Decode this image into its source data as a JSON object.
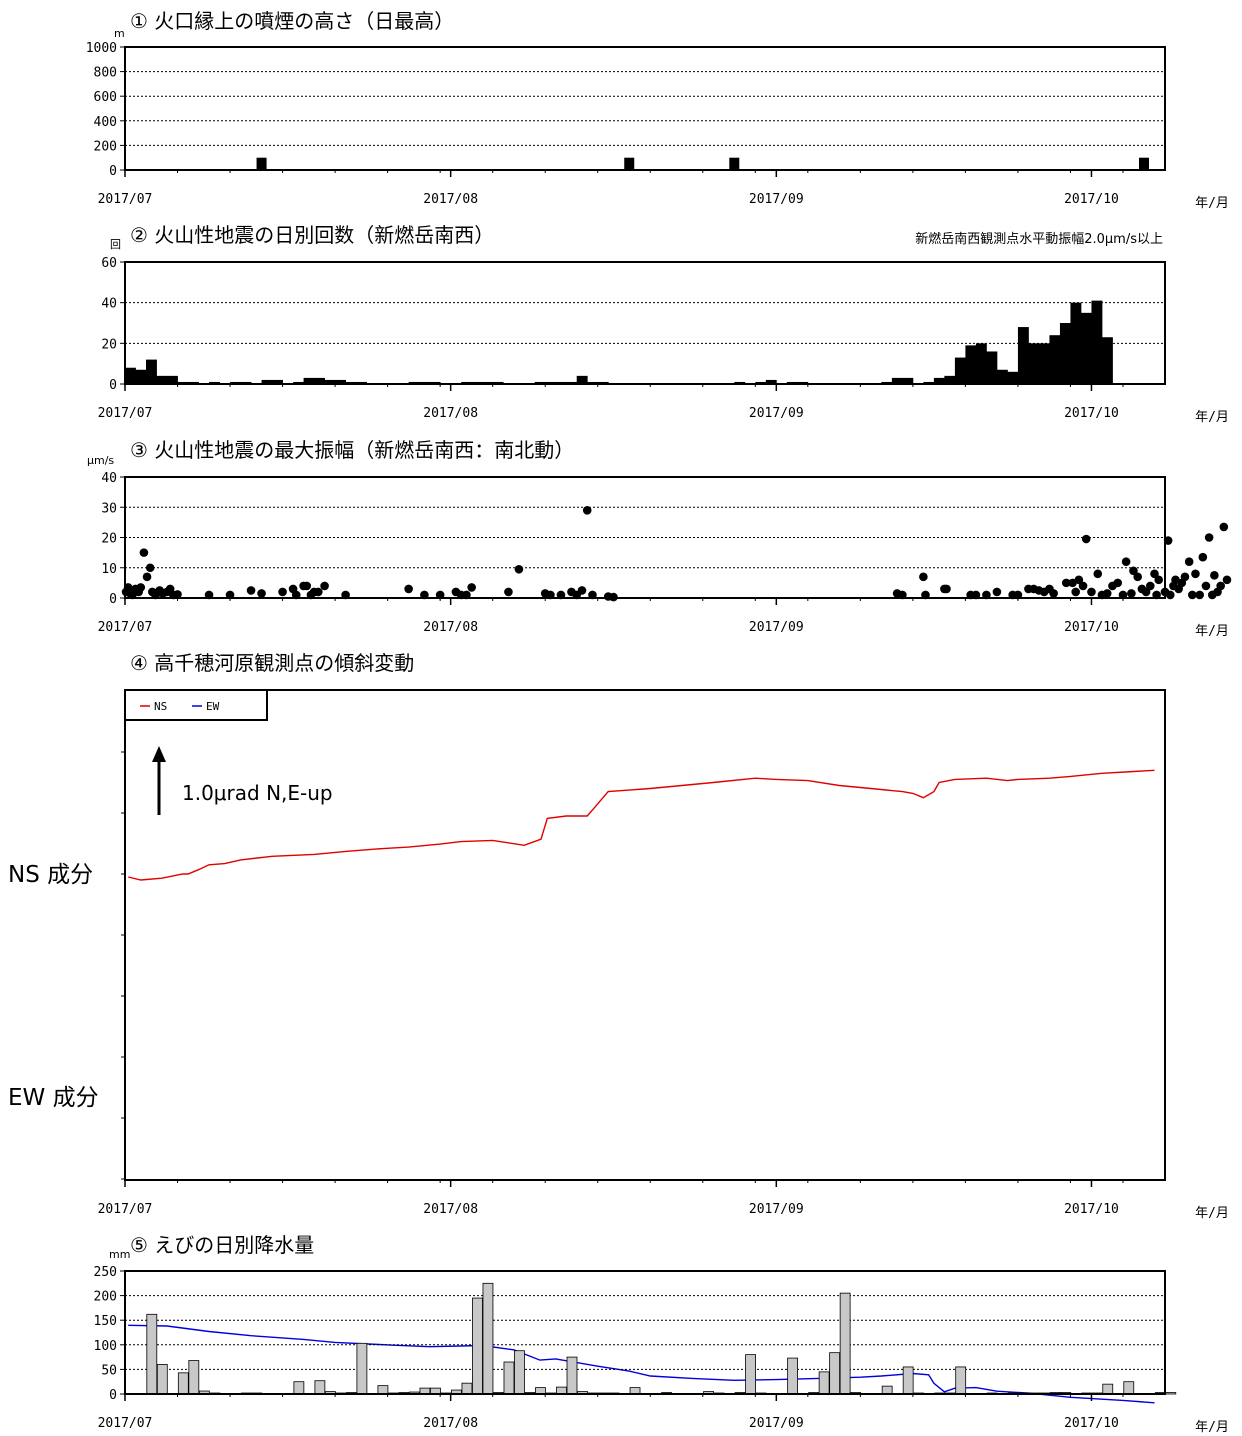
{
  "x_axis": {
    "ticks": [
      "2017/07",
      "2017/08",
      "2017/09",
      "2017/10"
    ],
    "unit_label": "年/月",
    "range": [
      "2017-07-01",
      "2017-10-08"
    ]
  },
  "chart_data": [
    {
      "id": "p1",
      "type": "bar",
      "title": "① 火口縁上の噴煙の高さ（日最高）",
      "ylabel": "m",
      "ylim": [
        0,
        1000
      ],
      "yticks": [
        0,
        200,
        400,
        600,
        800,
        1000
      ],
      "grid": true,
      "x": [
        "2017-07-14",
        "2017-08-18",
        "2017-08-28",
        "2017-10-06"
      ],
      "values": [
        100,
        100,
        100,
        100
      ]
    },
    {
      "id": "p2",
      "type": "bar",
      "title": "② 火山性地震の日別回数（新燃岳南西）",
      "ylabel": "回",
      "annotation": "新燃岳南西観測点水平動振幅2.0μm/s以上",
      "ylim": [
        0,
        60
      ],
      "yticks": [
        0,
        20,
        40,
        60
      ],
      "grid": true,
      "start": "2017-07-01",
      "values": [
        8,
        7,
        12,
        4,
        4,
        1,
        1,
        0,
        1,
        0,
        1,
        1,
        0,
        2,
        2,
        0,
        1,
        3,
        3,
        2,
        2,
        1,
        1,
        0,
        0,
        0,
        0,
        1,
        1,
        1,
        0,
        0,
        1,
        1,
        1,
        1,
        0,
        0,
        0,
        1,
        1,
        1,
        1,
        4,
        1,
        1,
        0,
        0,
        0,
        0,
        0,
        0,
        0,
        0,
        0,
        0,
        0,
        0,
        1,
        0,
        1,
        2,
        0,
        1,
        1,
        0,
        0,
        0,
        0,
        0,
        0,
        0,
        1,
        3,
        3,
        0,
        1,
        3,
        4,
        13,
        19,
        20,
        16,
        7,
        6,
        28,
        20,
        20,
        24,
        30,
        40,
        35,
        41,
        23
      ]
    },
    {
      "id": "p3",
      "type": "scatter",
      "title": "③ 火山性地震の最大振幅（新燃岳南西：南北動）",
      "ylabel": "μm/s",
      "ylim": [
        0,
        40
      ],
      "yticks": [
        0,
        10,
        20,
        30,
        40
      ],
      "grid": true,
      "points": [
        [
          0.1,
          2
        ],
        [
          0.3,
          3.5
        ],
        [
          0.5,
          1.5
        ],
        [
          0.7,
          1
        ],
        [
          1,
          3
        ],
        [
          1.3,
          2
        ],
        [
          1.5,
          3.5
        ],
        [
          1.8,
          15
        ],
        [
          2.1,
          7
        ],
        [
          2.4,
          10
        ],
        [
          2.6,
          2
        ],
        [
          2.9,
          1
        ],
        [
          3.3,
          2.5
        ],
        [
          3.6,
          1.5
        ],
        [
          4,
          2
        ],
        [
          4.3,
          3
        ],
        [
          4.6,
          1
        ],
        [
          5,
          1.2
        ],
        [
          8,
          1
        ],
        [
          10,
          1
        ],
        [
          12,
          2.5
        ],
        [
          13,
          1.5
        ],
        [
          15,
          2
        ],
        [
          16,
          3
        ],
        [
          16.3,
          1
        ],
        [
          17,
          4
        ],
        [
          17.3,
          4
        ],
        [
          17.7,
          1
        ],
        [
          18,
          2
        ],
        [
          18.4,
          2
        ],
        [
          19,
          4
        ],
        [
          21,
          1
        ],
        [
          27,
          3
        ],
        [
          28.5,
          1
        ],
        [
          30,
          1
        ],
        [
          31.5,
          2
        ],
        [
          32,
          1
        ],
        [
          32.5,
          1
        ],
        [
          33,
          3.5
        ],
        [
          36.5,
          2
        ],
        [
          37.5,
          9.5
        ],
        [
          40,
          1.5
        ],
        [
          40.5,
          1
        ],
        [
          41.5,
          1
        ],
        [
          42.5,
          2
        ],
        [
          43,
          1
        ],
        [
          43.5,
          2.5
        ],
        [
          44,
          29
        ],
        [
          44.5,
          1
        ],
        [
          46,
          0.5
        ],
        [
          46.5,
          0.3
        ],
        [
          73.5,
          1.5
        ],
        [
          74,
          1
        ],
        [
          76,
          7
        ],
        [
          76.2,
          1
        ],
        [
          78,
          3
        ],
        [
          78.2,
          3
        ],
        [
          80.5,
          1
        ],
        [
          81,
          1
        ],
        [
          82,
          1
        ],
        [
          83,
          2
        ],
        [
          84.5,
          1
        ],
        [
          85,
          1
        ],
        [
          86,
          3
        ],
        [
          86.5,
          3
        ],
        [
          87,
          2.5
        ],
        [
          87.5,
          2
        ],
        [
          88,
          3
        ],
        [
          88.4,
          1.5
        ],
        [
          89.6,
          5
        ],
        [
          90.2,
          5
        ],
        [
          90.5,
          2
        ],
        [
          90.8,
          6
        ],
        [
          91.2,
          4
        ],
        [
          91.5,
          19.5
        ],
        [
          92,
          2
        ],
        [
          92.6,
          8
        ],
        [
          93,
          1
        ],
        [
          93.5,
          1.5
        ],
        [
          94,
          4
        ],
        [
          94.5,
          5
        ],
        [
          95,
          1
        ],
        [
          95.3,
          12
        ],
        [
          95.8,
          1.5
        ],
        [
          96,
          9
        ],
        [
          96.4,
          7
        ],
        [
          96.8,
          3
        ],
        [
          97.2,
          2
        ],
        [
          97.6,
          4
        ],
        [
          98,
          8
        ],
        [
          98.2,
          1
        ],
        [
          98.4,
          6
        ],
        [
          99,
          2
        ],
        [
          99.3,
          19
        ],
        [
          99.5,
          1
        ],
        [
          99.8,
          4
        ],
        [
          100,
          6
        ],
        [
          100.3,
          3
        ],
        [
          100.6,
          5
        ],
        [
          100.9,
          7
        ],
        [
          101.3,
          12
        ],
        [
          101.6,
          1
        ],
        [
          101.9,
          8
        ],
        [
          102.3,
          1
        ],
        [
          102.6,
          13.5
        ],
        [
          102.9,
          4
        ],
        [
          103.2,
          20
        ],
        [
          103.5,
          1
        ],
        [
          103.7,
          7.5
        ],
        [
          104,
          2
        ],
        [
          104.3,
          4
        ],
        [
          104.6,
          23.5
        ],
        [
          104.9,
          6
        ]
      ]
    },
    {
      "id": "p4",
      "type": "line",
      "title": "④ 高千穂河原観測点の傾斜変動",
      "legend": [
        "NS",
        "EW"
      ],
      "legend_position": "top-left",
      "scale_label": "1.0μrad N,E-up",
      "component_labels": [
        "NS 成分",
        "EW 成分"
      ],
      "ylabel": "μrad",
      "series": [
        {
          "name": "NS",
          "color": "#e00000",
          "points": [
            [
              0.3,
              0
            ],
            [
              1.5,
              -0.05
            ],
            [
              3.5,
              -0.02
            ],
            [
              5.5,
              0.05
            ],
            [
              6,
              0.05
            ],
            [
              7,
              0.12
            ],
            [
              8,
              0.2
            ],
            [
              9.5,
              0.22
            ],
            [
              11,
              0.28
            ],
            [
              14,
              0.34
            ],
            [
              18,
              0.37
            ],
            [
              21,
              0.42
            ],
            [
              24,
              0.46
            ],
            [
              27,
              0.49
            ],
            [
              30,
              0.54
            ],
            [
              32,
              0.58
            ],
            [
              35,
              0.6
            ],
            [
              38,
              0.52
            ],
            [
              39.6,
              0.62
            ],
            [
              40.2,
              0.96
            ],
            [
              42,
              1.0
            ],
            [
              44,
              1.0
            ],
            [
              44.5,
              1.1
            ],
            [
              46,
              1.4
            ],
            [
              50,
              1.45
            ],
            [
              53,
              1.5
            ],
            [
              56,
              1.55
            ],
            [
              60,
              1.62
            ],
            [
              62,
              1.6
            ],
            [
              65,
              1.58
            ],
            [
              68,
              1.5
            ],
            [
              71,
              1.45
            ],
            [
              74,
              1.4
            ],
            [
              75,
              1.37
            ],
            [
              76,
              1.3
            ],
            [
              77,
              1.4
            ],
            [
              77.5,
              1.55
            ],
            [
              79,
              1.6
            ],
            [
              82,
              1.62
            ],
            [
              84,
              1.58
            ],
            [
              85,
              1.6
            ],
            [
              88,
              1.62
            ],
            [
              90,
              1.65
            ],
            [
              93,
              1.7
            ],
            [
              96,
              1.73
            ],
            [
              98,
              1.75
            ]
          ]
        },
        {
          "name": "EW",
          "color": "#0000e0",
          "points": [
            [
              0.3,
              -7.35
            ],
            [
              4,
              -7.36
            ],
            [
              8,
              -7.45
            ],
            [
              12,
              -7.52
            ],
            [
              17,
              -7.58
            ],
            [
              20,
              -7.63
            ],
            [
              25,
              -7.67
            ],
            [
              29,
              -7.7
            ],
            [
              34,
              -7.68
            ],
            [
              37,
              -7.75
            ],
            [
              39.5,
              -7.92
            ],
            [
              41,
              -7.9
            ],
            [
              43,
              -7.96
            ],
            [
              45,
              -8.02
            ],
            [
              48,
              -8.1
            ],
            [
              50,
              -8.18
            ],
            [
              54,
              -8.22
            ],
            [
              58,
              -8.25
            ],
            [
              62,
              -8.24
            ],
            [
              66,
              -8.22
            ],
            [
              70,
              -8.2
            ],
            [
              72,
              -8.18
            ],
            [
              75,
              -8.14
            ],
            [
              76.5,
              -8.16
            ],
            [
              77,
              -8.3
            ],
            [
              78,
              -8.44
            ],
            [
              79,
              -8.38
            ],
            [
              81,
              -8.37
            ],
            [
              83,
              -8.43
            ],
            [
              86,
              -8.46
            ],
            [
              90,
              -8.53
            ],
            [
              95,
              -8.58
            ],
            [
              98,
              -8.62
            ]
          ]
        }
      ]
    },
    {
      "id": "p5",
      "type": "bar",
      "title": "⑤ えびの日別降水量",
      "ylabel": "mm",
      "ylim": [
        0,
        250
      ],
      "yticks": [
        0,
        50,
        100,
        150,
        200,
        250
      ],
      "grid": true,
      "x_days": [
        2,
        3,
        5,
        6,
        7,
        8,
        11,
        12,
        16,
        18,
        19,
        20,
        21,
        22,
        24,
        25,
        26,
        27,
        28,
        29,
        30,
        31,
        32,
        33,
        34,
        35,
        36,
        37,
        38,
        39,
        40,
        41,
        42,
        43,
        44,
        45,
        46,
        48,
        51,
        55,
        56,
        58,
        59,
        60,
        63,
        65,
        66,
        67,
        68,
        69,
        72,
        74,
        75,
        77,
        78,
        79,
        82,
        84,
        85,
        86,
        87,
        88,
        89,
        91,
        92,
        93,
        95,
        98,
        99
      ],
      "values": [
        162,
        60,
        43,
        68,
        6,
        2,
        2,
        2,
        25,
        27,
        5,
        2,
        3,
        103,
        17,
        2,
        3,
        4,
        12,
        12,
        2,
        8,
        22,
        195,
        225,
        3,
        65,
        88,
        3,
        13,
        2,
        14,
        75,
        5,
        2,
        2,
        2,
        13,
        3,
        5,
        2,
        3,
        80,
        2,
        73,
        3,
        45,
        84,
        205,
        3,
        16,
        55,
        2,
        2,
        2,
        55,
        2,
        2,
        2,
        2,
        2,
        3,
        3,
        2,
        2,
        20,
        25,
        3,
        3
      ]
    }
  ]
}
